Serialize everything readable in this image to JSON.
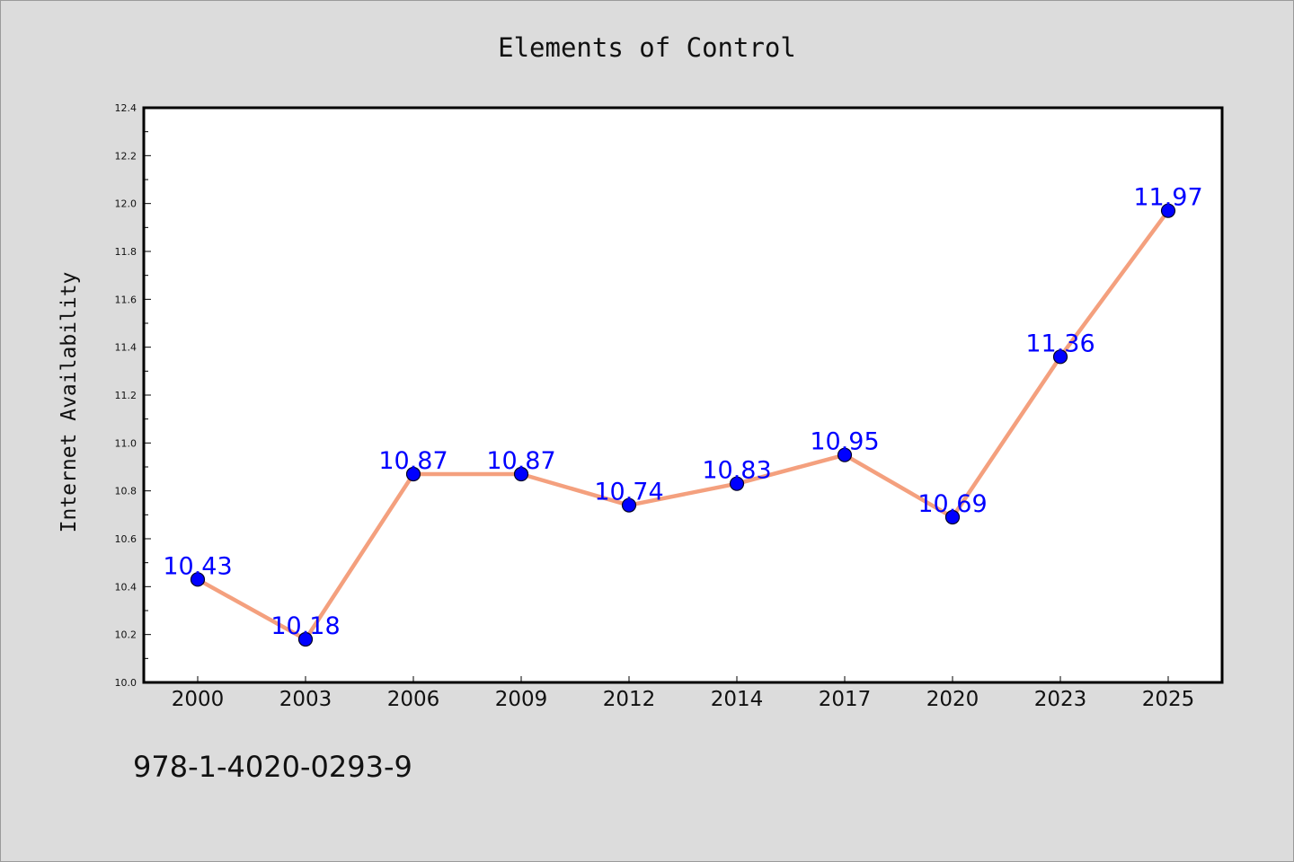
{
  "chart_data": {
    "type": "line",
    "title": "Elements of Control",
    "xlabel": "",
    "ylabel": "Internet Availability",
    "categories": [
      "2000",
      "2003",
      "2006",
      "2009",
      "2012",
      "2014",
      "2017",
      "2020",
      "2023",
      "2025"
    ],
    "series": [
      {
        "values": [
          10.43,
          10.18,
          10.87,
          10.87,
          10.74,
          10.83,
          10.95,
          10.69,
          11.36,
          11.97
        ],
        "data_labels": [
          "10.43",
          "10.18",
          "10.87",
          "10.87",
          "10.74",
          "10.83",
          "10.95",
          "10.69",
          "11.36",
          "11.97"
        ]
      }
    ],
    "ylim": [
      10.0,
      12.4
    ],
    "yticks": [
      "10.0",
      "10.2",
      "10.4",
      "10.6",
      "10.8",
      "11.0",
      "11.2",
      "11.4",
      "11.6",
      "11.8",
      "12.0",
      "12.2",
      "12.4"
    ],
    "grid": false,
    "legend": "none",
    "colors": {
      "line": "#f4a07e",
      "marker": "#0000ff",
      "label": "#0000ff",
      "background": "#dcdcdc",
      "plot_background": "#ffffff"
    }
  },
  "footer": {
    "isbn": "978-1-4020-0293-9"
  }
}
